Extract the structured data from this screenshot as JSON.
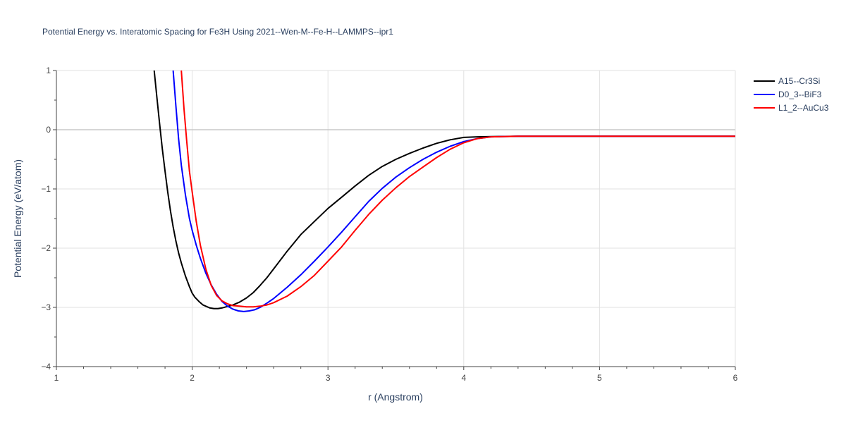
{
  "chart_data": {
    "type": "line",
    "title": "Potential Energy vs. Interatomic Spacing for Fe3H Using 2021--Wen-M--Fe-H--LAMMPS--ipr1",
    "xlabel": "r (Angstrom)",
    "ylabel": "Potential Energy (eV/atom)",
    "xlim": [
      1,
      6
    ],
    "ylim": [
      -4,
      1
    ],
    "xticks": [
      1,
      2,
      3,
      4,
      5,
      6
    ],
    "yticks": [
      -4,
      -3,
      -2,
      -1,
      0,
      1
    ],
    "xtick_labels": [
      "1",
      "2",
      "3",
      "4",
      "5",
      "6"
    ],
    "ytick_labels": [
      "−4",
      "−3",
      "−2",
      "−1",
      "0",
      "1"
    ],
    "grid": true,
    "legend_position": "top-right",
    "series": [
      {
        "name": "A15--Cr3Si",
        "color": "#000000",
        "x": [
          1.72,
          1.74,
          1.76,
          1.78,
          1.8,
          1.82,
          1.84,
          1.86,
          1.88,
          1.9,
          1.92,
          1.95,
          1.98,
          2.0,
          2.02,
          2.05,
          2.08,
          2.1,
          2.13,
          2.16,
          2.19,
          2.22,
          2.25,
          2.3,
          2.35,
          2.4,
          2.45,
          2.5,
          2.55,
          2.6,
          2.7,
          2.8,
          2.9,
          3.0,
          3.1,
          3.2,
          3.3,
          3.4,
          3.5,
          3.6,
          3.7,
          3.8,
          3.9,
          4.0,
          4.1,
          4.2,
          4.4,
          4.6,
          4.8,
          5.0,
          5.5,
          6.0
        ],
        "y": [
          1.0,
          0.55,
          0.1,
          -0.32,
          -0.7,
          -1.05,
          -1.37,
          -1.64,
          -1.88,
          -2.08,
          -2.25,
          -2.47,
          -2.65,
          -2.76,
          -2.83,
          -2.9,
          -2.96,
          -2.98,
          -3.01,
          -3.02,
          -3.02,
          -3.01,
          -2.99,
          -2.96,
          -2.91,
          -2.84,
          -2.75,
          -2.63,
          -2.5,
          -2.35,
          -2.05,
          -1.77,
          -1.55,
          -1.33,
          -1.14,
          -0.95,
          -0.77,
          -0.62,
          -0.5,
          -0.4,
          -0.31,
          -0.23,
          -0.17,
          -0.13,
          -0.12,
          -0.115,
          -0.11,
          -0.11,
          -0.11,
          -0.11,
          -0.11,
          -0.11
        ]
      },
      {
        "name": "D0_3--BiF3",
        "color": "#0000ff",
        "x": [
          1.86,
          1.88,
          1.9,
          1.92,
          1.95,
          1.98,
          2.0,
          2.03,
          2.06,
          2.1,
          2.14,
          2.18,
          2.22,
          2.26,
          2.3,
          2.34,
          2.38,
          2.42,
          2.46,
          2.5,
          2.55,
          2.6,
          2.7,
          2.8,
          2.9,
          3.0,
          3.1,
          3.2,
          3.3,
          3.4,
          3.5,
          3.6,
          3.7,
          3.8,
          3.9,
          4.0,
          4.1,
          4.2,
          4.4,
          4.6,
          5.0,
          5.5,
          6.0
        ],
        "y": [
          1.0,
          0.4,
          -0.15,
          -0.6,
          -1.1,
          -1.5,
          -1.7,
          -1.95,
          -2.17,
          -2.42,
          -2.62,
          -2.78,
          -2.9,
          -2.98,
          -3.03,
          -3.06,
          -3.07,
          -3.06,
          -3.04,
          -3.0,
          -2.93,
          -2.85,
          -2.66,
          -2.45,
          -2.22,
          -1.98,
          -1.73,
          -1.47,
          -1.21,
          -0.99,
          -0.8,
          -0.64,
          -0.5,
          -0.38,
          -0.28,
          -0.2,
          -0.15,
          -0.12,
          -0.11,
          -0.11,
          -0.11,
          -0.11,
          -0.11
        ]
      },
      {
        "name": "L1_2--AuCu3",
        "color": "#ff0000",
        "x": [
          1.92,
          1.94,
          1.96,
          1.98,
          2.0,
          2.03,
          2.06,
          2.1,
          2.14,
          2.18,
          2.22,
          2.26,
          2.3,
          2.35,
          2.4,
          2.45,
          2.5,
          2.55,
          2.6,
          2.7,
          2.8,
          2.9,
          3.0,
          3.1,
          3.2,
          3.3,
          3.4,
          3.5,
          3.6,
          3.7,
          3.8,
          3.9,
          4.0,
          4.1,
          4.2,
          4.4,
          4.6,
          5.0,
          5.5,
          6.0
        ],
        "y": [
          1.0,
          0.35,
          -0.2,
          -0.7,
          -1.05,
          -1.55,
          -1.95,
          -2.35,
          -2.63,
          -2.8,
          -2.89,
          -2.94,
          -2.97,
          -2.98,
          -2.99,
          -2.99,
          -2.98,
          -2.96,
          -2.92,
          -2.81,
          -2.65,
          -2.46,
          -2.22,
          -1.98,
          -1.7,
          -1.43,
          -1.19,
          -0.98,
          -0.79,
          -0.63,
          -0.47,
          -0.33,
          -0.22,
          -0.15,
          -0.12,
          -0.11,
          -0.11,
          -0.11,
          -0.11,
          -0.11
        ]
      }
    ]
  }
}
